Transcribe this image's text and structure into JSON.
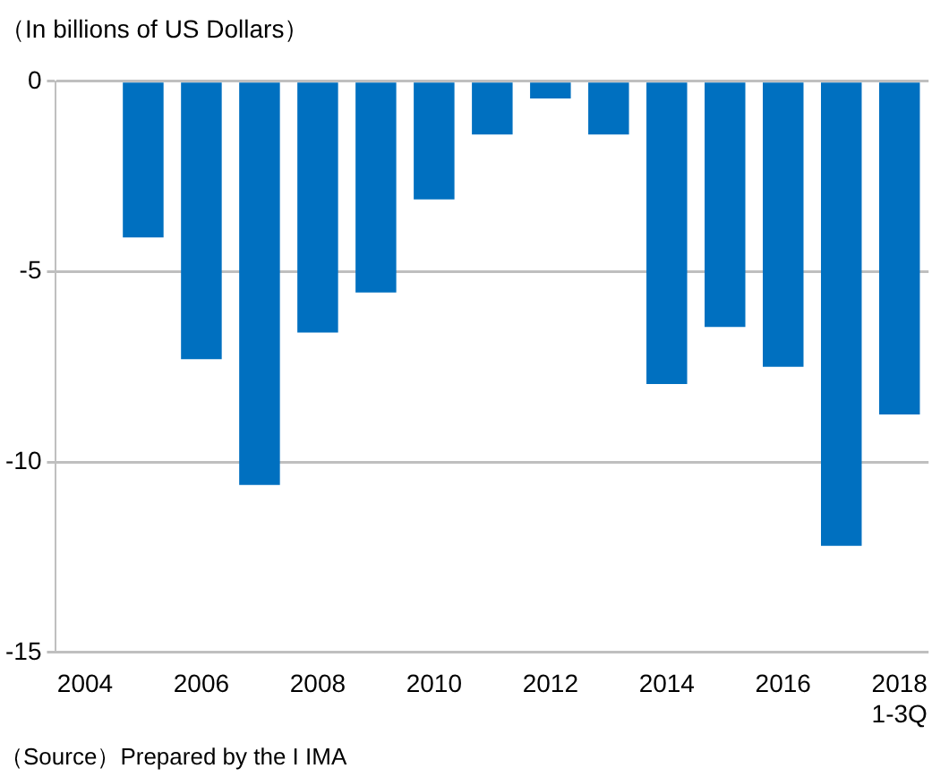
{
  "chart_data": {
    "type": "bar",
    "ylabel": "（In billions of US Dollars）",
    "categories": [
      "2004",
      null,
      "2006",
      null,
      "2008",
      null,
      "2010",
      null,
      "2012",
      null,
      "2014",
      null,
      "2016",
      null,
      "2018 1-3Q"
    ],
    "values": [
      0,
      -4.1,
      -7.3,
      -10.6,
      -6.6,
      -5.55,
      -3.1,
      -1.4,
      -0.45,
      -1.4,
      -7.95,
      -6.45,
      -7.5,
      -12.2,
      -8.75
    ],
    "color": "#0070c0",
    "ylim": [
      -15,
      0
    ],
    "yticks": [
      -15,
      -10,
      -5,
      0
    ],
    "grid": "y",
    "annotations": [
      "（Source）Prepared by the I IMA"
    ]
  }
}
